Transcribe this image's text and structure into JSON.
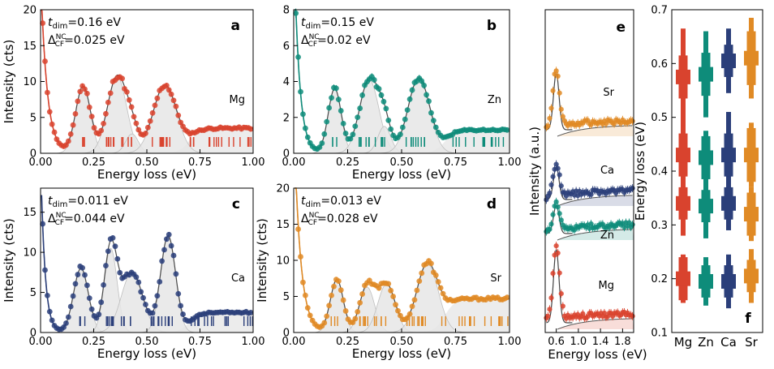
{
  "chart_data": [
    {
      "id": "a",
      "type": "line",
      "panel_letter": "a",
      "element": "Mg",
      "color": "#d9432e",
      "xlabel": "Energy loss (eV)",
      "ylabel": "Intensity (cts)",
      "xlim": [
        0,
        1
      ],
      "ylim": [
        0,
        20
      ],
      "xticks": [
        "0.00",
        "0.25",
        "0.50",
        "0.75",
        "1.00"
      ],
      "yticks": [
        "0",
        "5",
        "10",
        "15",
        "20"
      ],
      "t_dim": "t",
      "t_dim_sub": "dim",
      "t_dim_value": "=0.16 eV",
      "delta": "Δ",
      "delta_sup": "NC",
      "delta_sub": "CF",
      "delta_value": "=0.025 eV",
      "background": 3.5,
      "peaks": [
        [
          0.2,
          9.3,
          0.035
        ],
        [
          0.36,
          10.7,
          0.045
        ],
        [
          0.43,
          2.7,
          0.03
        ],
        [
          0.585,
          9.5,
          0.055
        ]
      ],
      "elastic": {
        "amp": 25,
        "decay": 0.03
      }
    },
    {
      "id": "b",
      "type": "line",
      "panel_letter": "b",
      "element": "Zn",
      "color": "#0e8c7a",
      "xlabel": "Energy loss (eV)",
      "ylabel": "",
      "xlim": [
        0,
        1
      ],
      "ylim": [
        0,
        8
      ],
      "xticks": [
        "0.00",
        "0.25",
        "0.50",
        "0.75",
        "1.00"
      ],
      "yticks": [
        "0",
        "2",
        "4",
        "6",
        "8"
      ],
      "t_dim": "t",
      "t_dim_sub": "dim",
      "t_dim_value": "=0.15 eV",
      "delta": "Δ",
      "delta_sup": "NC",
      "delta_sub": "CF",
      "delta_value": "=0.02 eV",
      "background": 1.3,
      "peaks": [
        [
          0.19,
          3.6,
          0.03
        ],
        [
          0.35,
          4.1,
          0.045
        ],
        [
          0.42,
          1.5,
          0.03
        ],
        [
          0.58,
          4.2,
          0.05
        ]
      ],
      "elastic": {
        "amp": 12,
        "decay": 0.025
      }
    },
    {
      "id": "c",
      "type": "line",
      "panel_letter": "c",
      "element": "Ca",
      "color": "#2b3f7a",
      "xlabel": "Energy loss (eV)",
      "ylabel": "Intensity (cts)",
      "xlim": [
        0,
        1
      ],
      "ylim": [
        0,
        18
      ],
      "xticks": [
        "0.00",
        "0.25",
        "0.50",
        "0.75",
        "1.00"
      ],
      "yticks": [
        "0",
        "5",
        "10",
        "15"
      ],
      "t_dim": "t",
      "t_dim_sub": "dim",
      "t_dim_value": "=0.011 eV",
      "delta": "Δ",
      "delta_sup": "NC",
      "delta_sub": "CF",
      "delta_value": "=0.044 eV",
      "background": 2.5,
      "peaks": [
        [
          0.19,
          8.0,
          0.035
        ],
        [
          0.33,
          10.5,
          0.03
        ],
        [
          0.43,
          7.5,
          0.05
        ],
        [
          0.6,
          12.0,
          0.035
        ]
      ],
      "elastic": {
        "amp": 22,
        "decay": 0.02
      }
    },
    {
      "id": "d",
      "type": "line",
      "panel_letter": "d",
      "element": "Sr",
      "color": "#e08a25",
      "xlabel": "Energy loss (eV)",
      "ylabel": "Intensity (cts)",
      "xlim": [
        0,
        1
      ],
      "ylim": [
        0,
        20
      ],
      "xticks": [
        "0.00",
        "0.25",
        "0.50",
        "0.75",
        "1.00"
      ],
      "yticks": [
        "0",
        "5",
        "10",
        "15",
        "20"
      ],
      "t_dim": "t",
      "t_dim_sub": "dim",
      "t_dim_value": "=0.013 eV",
      "delta": "Δ",
      "delta_sup": "NC",
      "delta_sub": "CF",
      "delta_value": "=0.028 eV",
      "background": 4.7,
      "peaks": [
        [
          0.2,
          7.3,
          0.03
        ],
        [
          0.34,
          6.3,
          0.035
        ],
        [
          0.43,
          6.7,
          0.04
        ],
        [
          0.62,
          9.5,
          0.05
        ]
      ],
      "elastic": {
        "amp": 30,
        "decay": 0.03
      }
    },
    {
      "id": "e",
      "type": "line",
      "panel_letter": "e",
      "xlabel": "Energy loss (eV)",
      "ylabel": "Intensity (a.u.)",
      "xlim": [
        0.4,
        2.0
      ],
      "xticks": [
        "0.6",
        "1.0",
        "1.4",
        "1.8"
      ],
      "series": [
        {
          "name": "Sr",
          "color": "#e08a25",
          "offset": 3.0
        },
        {
          "name": "Ca",
          "color": "#2b3f7a",
          "offset": 2.0
        },
        {
          "name": "Zn",
          "color": "#0e8c7a",
          "offset": 1.45
        },
        {
          "name": "Mg",
          "color": "#d9432e",
          "offset": 0.0
        }
      ]
    },
    {
      "id": "f",
      "type": "scatter",
      "panel_letter": "f",
      "ylabel": "Energy loss (eV)",
      "ylim": [
        0.1,
        0.7
      ],
      "yticks": [
        "0.1",
        "0.2",
        "0.3",
        "0.4",
        "0.5",
        "0.6",
        "0.7"
      ],
      "categories": [
        "Mg",
        "Zn",
        "Ca",
        "Sr"
      ],
      "colors": [
        "#d9432e",
        "#0e8c7a",
        "#2b3f7a",
        "#e08a25"
      ],
      "series": [
        {
          "name": "Mg",
          "values": [
            0.2,
            0.34,
            0.43,
            0.575
          ],
          "inner": [
            0.04,
            0.03,
            0.04,
            0.04
          ],
          "outer": [
            0.045,
            0.06,
            0.07,
            0.09
          ]
        },
        {
          "name": "Zn",
          "values": [
            0.195,
            0.335,
            0.425,
            0.58
          ],
          "inner": [
            0.03,
            0.03,
            0.04,
            0.04
          ],
          "outer": [
            0.045,
            0.06,
            0.05,
            0.08
          ]
        },
        {
          "name": "Ca",
          "values": [
            0.195,
            0.34,
            0.43,
            0.605
          ],
          "inner": [
            0.03,
            0.03,
            0.04,
            0.03
          ],
          "outer": [
            0.05,
            0.05,
            0.08,
            0.06
          ]
        },
        {
          "name": "Sr",
          "values": [
            0.205,
            0.32,
            0.43,
            0.61
          ],
          "inner": [
            0.03,
            0.04,
            0.05,
            0.05
          ],
          "outer": [
            0.05,
            0.05,
            0.06,
            0.075
          ]
        }
      ]
    }
  ]
}
